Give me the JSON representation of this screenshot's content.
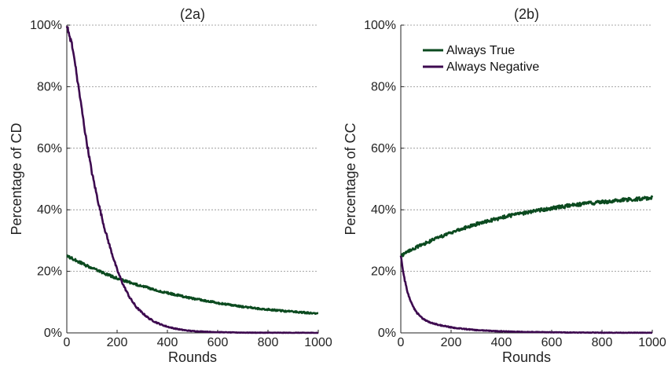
{
  "chart_data": [
    {
      "type": "line",
      "title": "(2a)",
      "xlabel": "Rounds",
      "ylabel": "Percentage of CD",
      "xlim": [
        0,
        1000
      ],
      "ylim": [
        0,
        100
      ],
      "xticks": [
        0,
        200,
        400,
        600,
        800,
        1000
      ],
      "yticks": [
        0,
        20,
        40,
        60,
        80,
        100
      ],
      "ytick_suffix": "%",
      "grid": "horizontal dotted",
      "series": [
        {
          "name": "Always True",
          "color": "#0b4a1f",
          "x": [
            0,
            25,
            50,
            75,
            100,
            125,
            150,
            175,
            200,
            225,
            250,
            275,
            300,
            325,
            350,
            375,
            400,
            425,
            450,
            475,
            500,
            525,
            550,
            575,
            600,
            625,
            650,
            675,
            700,
            725,
            750,
            775,
            800,
            825,
            850,
            875,
            900,
            925,
            950,
            975,
            1000
          ],
          "y": [
            25.0,
            24.0,
            23.0,
            22.0,
            21.0,
            20.2,
            19.3,
            18.5,
            17.8,
            17.0,
            16.4,
            15.8,
            15.2,
            14.6,
            14.0,
            13.5,
            13.0,
            12.5,
            12.1,
            11.6,
            11.2,
            10.8,
            10.4,
            10.1,
            9.7,
            9.4,
            9.1,
            8.8,
            8.5,
            8.3,
            8.0,
            7.8,
            7.6,
            7.4,
            7.2,
            7.0,
            6.9,
            6.7,
            6.6,
            6.4,
            6.3
          ]
        },
        {
          "name": "Always Negative",
          "color": "#3d0a4f",
          "x": [
            0,
            25,
            50,
            75,
            100,
            125,
            150,
            175,
            200,
            225,
            250,
            275,
            300,
            325,
            350,
            375,
            400,
            425,
            450,
            475,
            500,
            525,
            550,
            575,
            600,
            625,
            650,
            675,
            700,
            725,
            750,
            775,
            800,
            825,
            850,
            875,
            900,
            925,
            950,
            975,
            1000
          ],
          "y": [
            100.0,
            92.0,
            78.0,
            64.0,
            52.0,
            42.5,
            34.0,
            27.0,
            20.5,
            15.5,
            11.5,
            8.5,
            6.5,
            4.8,
            3.6,
            2.7,
            2.0,
            1.5,
            1.1,
            0.8,
            0.6,
            0.5,
            0.4,
            0.3,
            0.25,
            0.2,
            0.15,
            0.12,
            0.1,
            0.08,
            0.07,
            0.06,
            0.05,
            0.05,
            0.04,
            0.04,
            0.03,
            0.03,
            0.03,
            0.02,
            0.02
          ]
        }
      ]
    },
    {
      "type": "line",
      "title": "(2b)",
      "xlabel": "Rounds",
      "ylabel": "Percentage of CC",
      "xlim": [
        0,
        1000
      ],
      "ylim": [
        0,
        100
      ],
      "xticks": [
        0,
        200,
        400,
        600,
        800,
        1000
      ],
      "yticks": [
        0,
        20,
        40,
        60,
        80,
        100
      ],
      "ytick_suffix": "%",
      "grid": "horizontal dotted",
      "legend": {
        "position": "top-left",
        "entries": [
          "Always True",
          "Always Negative"
        ]
      },
      "series": [
        {
          "name": "Always True",
          "color": "#0b4a1f",
          "x": [
            0,
            25,
            50,
            75,
            100,
            125,
            150,
            175,
            200,
            225,
            250,
            275,
            300,
            325,
            350,
            375,
            400,
            425,
            450,
            475,
            500,
            525,
            550,
            575,
            600,
            625,
            650,
            675,
            700,
            725,
            750,
            775,
            800,
            825,
            850,
            875,
            900,
            925,
            950,
            975,
            1000
          ],
          "y": [
            25.0,
            26.2,
            27.3,
            28.3,
            29.2,
            30.1,
            31.0,
            31.8,
            32.6,
            33.3,
            34.0,
            34.6,
            35.3,
            35.9,
            36.4,
            36.9,
            37.4,
            37.9,
            38.3,
            38.7,
            39.1,
            39.5,
            39.8,
            40.2,
            40.5,
            40.8,
            41.1,
            41.4,
            41.6,
            41.9,
            42.1,
            42.3,
            42.5,
            42.7,
            42.9,
            43.1,
            43.3,
            43.4,
            43.6,
            43.7,
            43.9
          ]
        },
        {
          "name": "Always Negative",
          "color": "#3d0a4f",
          "x": [
            0,
            10,
            20,
            30,
            40,
            50,
            60,
            70,
            80,
            90,
            100,
            125,
            150,
            175,
            200,
            225,
            250,
            275,
            300,
            350,
            400,
            450,
            500,
            550,
            600,
            650,
            700,
            750,
            800,
            850,
            900,
            950,
            1000
          ],
          "y": [
            25.0,
            19.5,
            15.5,
            12.5,
            10.2,
            8.4,
            7.0,
            6.0,
            5.1,
            4.5,
            4.0,
            3.2,
            2.6,
            2.2,
            1.8,
            1.5,
            1.3,
            1.1,
            0.9,
            0.7,
            0.5,
            0.4,
            0.3,
            0.25,
            0.2,
            0.15,
            0.12,
            0.1,
            0.08,
            0.06,
            0.05,
            0.04,
            0.03
          ]
        }
      ]
    }
  ]
}
